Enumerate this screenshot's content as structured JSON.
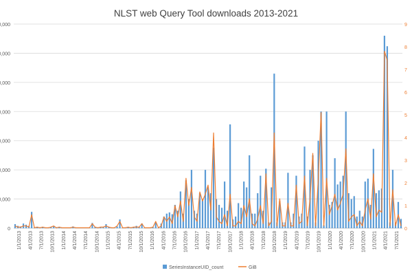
{
  "chart_data": {
    "type": "bar",
    "title": "NLST web Query Tool downloads 2013-2021",
    "xlabel": "",
    "ylabel": "",
    "y2label": "",
    "grid": true,
    "legend_position": "bottom",
    "left_axis": {
      "ylim": [
        0,
        350000
      ],
      "tick_values": [
        0,
        50000,
        100000,
        150000,
        200000,
        250000,
        300000,
        350000
      ],
      "tick_labels": [
        "0",
        "0,000",
        "0,000",
        "0,000",
        "0,000",
        "0,000",
        "0,000",
        "0,000"
      ]
    },
    "right_axis": {
      "ylim": [
        0,
        9
      ],
      "tick_values": [
        0,
        1,
        2,
        3,
        4,
        5,
        6,
        7,
        8,
        9
      ],
      "tick_labels": [
        "0",
        "1",
        "2",
        "3",
        "4",
        "5",
        "6",
        "7",
        "8",
        "9"
      ]
    },
    "x_tick_labels": [
      "1/1/2013",
      "4/1/2013",
      "7/1/2013",
      "10/1/2013",
      "1/1/2014",
      "4/1/2014",
      "7/1/2014",
      "10/1/2014",
      "1/1/2015",
      "4/1/2015",
      "7/1/2015",
      "10/1/2015",
      "1/1/2016",
      "4/1/2016",
      "7/1/2016",
      "10/1/2016",
      "1/1/2017",
      "4/1/2017",
      "7/1/2017",
      "10/1/2017",
      "1/1/2018",
      "4/1/2018",
      "7/1/2018",
      "10/1/2018",
      "1/1/2019",
      "4/1/2019",
      "7/1/2019",
      "10/1/2019",
      "1/1/2020",
      "4/1/2020",
      "7/1/2020",
      "10/1/2020",
      "1/1/2021",
      "4/1/2021",
      "7/1/2021"
    ],
    "series": [
      {
        "name": "SeriesInstanceUID_count",
        "axis": "left",
        "color": "#5b9bd5",
        "values": [
          7000,
          4000,
          3000,
          8000,
          6000,
          4000,
          28000,
          1000,
          2000,
          1000,
          2000,
          500,
          1000,
          2000,
          4000,
          1000,
          2000,
          1000,
          500,
          1000,
          1000,
          3000,
          1000,
          500,
          500,
          500,
          500,
          1000,
          9000,
          2000,
          1000,
          2000,
          2000,
          7000,
          2000,
          1000,
          1000,
          3000,
          15000,
          1000,
          1000,
          2000,
          1000,
          2000,
          4000,
          2000,
          8000,
          1000,
          1000,
          1000,
          2000,
          10000,
          1000,
          8000,
          20000,
          25000,
          27000,
          24000,
          40000,
          30000,
          63000,
          25000,
          82000,
          50000,
          100000,
          30000,
          25000,
          60000,
          50000,
          100000,
          70000,
          60000,
          138000,
          50000,
          40000,
          35000,
          80000,
          30000,
          178000,
          15000,
          20000,
          43000,
          35000,
          80000,
          70000,
          125000,
          25000,
          25000,
          60000,
          90000,
          30000,
          102000,
          10000,
          70000,
          265000,
          10000,
          46000,
          10000,
          10000,
          95000,
          10000,
          25000,
          90000,
          20000,
          25000,
          140000,
          20000,
          100000,
          125000,
          10000,
          150000,
          200000,
          5000,
          200000,
          40000,
          45000,
          120000,
          75000,
          80000,
          90000,
          200000,
          60000,
          50000,
          55000,
          20000,
          30000,
          20000,
          80000,
          85000,
          40000,
          136000,
          60000,
          65000,
          68000,
          330000,
          312000,
          10000,
          100000,
          10000,
          45000,
          16000
        ]
      },
      {
        "name": "GiB",
        "axis": "right",
        "color": "#ed7d31",
        "values": [
          0.1,
          0.05,
          0.05,
          0.1,
          0.1,
          0.05,
          0.6,
          0.02,
          0.05,
          0.02,
          0.05,
          0.02,
          0.02,
          0.05,
          0.1,
          0.02,
          0.05,
          0.02,
          0.02,
          0.02,
          0.02,
          0.05,
          0.02,
          0.02,
          0.02,
          0.02,
          0.02,
          0.02,
          0.2,
          0.05,
          0.02,
          0.05,
          0.05,
          0.1,
          0.05,
          0.02,
          0.02,
          0.1,
          0.3,
          0.02,
          0.02,
          0.05,
          0.02,
          0.05,
          0.05,
          0.05,
          0.2,
          0.02,
          0.02,
          0.02,
          0.05,
          0.3,
          0.02,
          0.1,
          0.5,
          0.3,
          0.5,
          0.2,
          1,
          0.5,
          1.2,
          0.3,
          2.2,
          1,
          1.8,
          0.5,
          0.3,
          1.6,
          1.2,
          1.5,
          1.9,
          0.8,
          4.2,
          0.5,
          0.3,
          0.2,
          0.6,
          0.1,
          1.5,
          0.1,
          0.1,
          0.3,
          0.2,
          1,
          0.5,
          1.3,
          0.2,
          0.1,
          0.4,
          1,
          0.2,
          2.4,
          0.1,
          0.3,
          4.2,
          0.1,
          1.3,
          0.1,
          0.1,
          1.1,
          0.1,
          0.1,
          1.9,
          0.2,
          0.3,
          2.3,
          0.1,
          1.3,
          3.3,
          0.1,
          2.2,
          5.1,
          0.1,
          2.2,
          0.6,
          1,
          1.5,
          0.8,
          1.1,
          1.5,
          3.5,
          0.3,
          0.5,
          0.6,
          0.1,
          0.3,
          0.1,
          0.8,
          1.3,
          0.4,
          2.4,
          0.5,
          0.8,
          0.7,
          7.8,
          7.4,
          0.1,
          1.7,
          0.1,
          0.6,
          0.1
        ]
      }
    ]
  }
}
